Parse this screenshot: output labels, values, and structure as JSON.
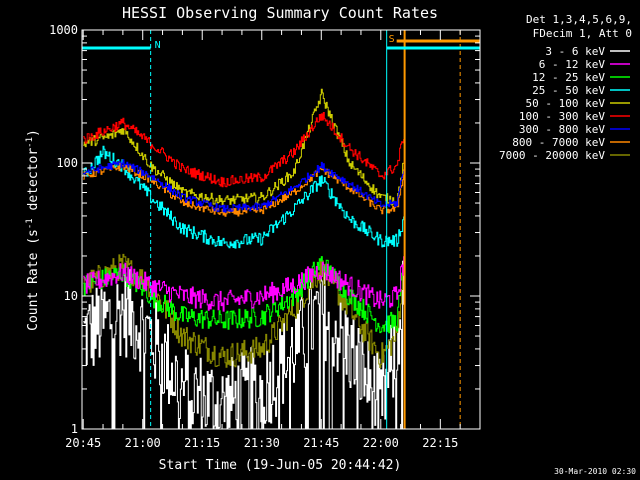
{
  "chart_data": {
    "type": "line",
    "title": "HESSI Observing Summary Count Rates",
    "xlabel": "Start Time (19-Jun-05 20:44:42)",
    "ylabel_main": "Count Rate (s",
    "ylabel_sup1": "-1",
    "ylabel_mid": " detector",
    "ylabel_sup2": "-1",
    "ylabel_end": ")",
    "yscale": "log",
    "xlim": [
      "20:44:42",
      "22:25:00"
    ],
    "ylim": [
      1,
      1000
    ],
    "x_ticks": [
      "20:45",
      "21:00",
      "21:15",
      "21:30",
      "21:45",
      "22:00",
      "22:15"
    ],
    "y_ticks": [
      "1",
      "10",
      "100",
      "1000"
    ],
    "legend_header": [
      "Det 1,3,4,5,6,9,",
      "FDecim 1, Att 0"
    ],
    "legend_position": "right",
    "footer_date": "30-Mar-2010 02:30",
    "annotations": [
      {
        "text": "N",
        "time": "21:02",
        "color": "#00ffff"
      },
      {
        "text": "S",
        "time": "22:04",
        "color": "#ff9900"
      }
    ],
    "bands": [
      {
        "label": "3 - 6 keV",
        "color": "#ffffff",
        "times": [
          "20:45",
          "20:55",
          "21:02",
          "21:10",
          "21:20",
          "21:30",
          "21:38",
          "21:45",
          "21:52",
          "22:00",
          "22:04",
          "22:06"
        ],
        "values": [
          5,
          8,
          5,
          2,
          1.5,
          2,
          4,
          8,
          4,
          1.5,
          4,
          20
        ]
      },
      {
        "label": "6 - 12 keV",
        "color": "#ff00ff",
        "times": [
          "20:45",
          "20:55",
          "21:02",
          "21:10",
          "21:20",
          "21:30",
          "21:38",
          "21:45",
          "21:52",
          "22:00",
          "22:04",
          "22:06"
        ],
        "values": [
          12,
          15,
          12,
          10,
          9,
          10,
          12,
          16,
          12,
          9,
          10,
          20
        ]
      },
      {
        "label": "12 - 25 keV",
        "color": "#00ff00",
        "times": [
          "20:45",
          "20:55",
          "21:02",
          "21:10",
          "21:20",
          "21:30",
          "21:38",
          "21:45",
          "21:52",
          "22:00",
          "22:04",
          "22:06"
        ],
        "values": [
          12,
          15,
          10,
          7,
          6.5,
          7,
          10,
          18,
          10,
          6,
          6.5,
          20
        ]
      },
      {
        "label": "25 - 50 keV",
        "color": "#00ffff",
        "times": [
          "20:45",
          "20:50",
          "20:55",
          "21:02",
          "21:10",
          "21:20",
          "21:30",
          "21:38",
          "21:45",
          "21:52",
          "22:00",
          "22:04",
          "22:06"
        ],
        "values": [
          80,
          120,
          95,
          55,
          32,
          25,
          27,
          45,
          75,
          38,
          26,
          26,
          40
        ]
      },
      {
        "label": "50 - 100 keV",
        "color": "#cccc00",
        "times": [
          "20:45",
          "20:52",
          "20:55",
          "21:02",
          "21:10",
          "21:20",
          "21:30",
          "21:38",
          "21:45",
          "21:52",
          "22:00",
          "22:04",
          "22:06"
        ],
        "values": [
          140,
          160,
          180,
          95,
          60,
          52,
          55,
          85,
          330,
          100,
          55,
          52,
          110
        ]
      },
      {
        "label": "100 - 300 keV",
        "color": "#ff0000",
        "times": [
          "20:45",
          "20:55",
          "21:02",
          "21:10",
          "21:20",
          "21:30",
          "21:38",
          "21:45",
          "21:52",
          "22:00",
          "22:04",
          "22:06"
        ],
        "values": [
          150,
          200,
          140,
          90,
          72,
          78,
          120,
          230,
          130,
          80,
          95,
          175
        ]
      },
      {
        "label": "300 - 800 keV",
        "color": "#0000ff",
        "times": [
          "20:45",
          "20:55",
          "21:02",
          "21:10",
          "21:20",
          "21:30",
          "21:38",
          "21:45",
          "21:52",
          "22:00",
          "22:04",
          "22:06"
        ],
        "values": [
          85,
          100,
          80,
          55,
          45,
          47,
          65,
          95,
          70,
          48,
          50,
          100
        ]
      },
      {
        "label": "800 - 7000 keV",
        "color": "#ff8800",
        "times": [
          "20:45",
          "20:55",
          "21:02",
          "21:10",
          "21:20",
          "21:30",
          "21:38",
          "21:45",
          "21:52",
          "22:00",
          "22:04",
          "22:06"
        ],
        "values": [
          80,
          95,
          75,
          50,
          42,
          44,
          60,
          90,
          65,
          44,
          45,
          95
        ]
      },
      {
        "label": "7000 - 20000 keV",
        "color": "#888800",
        "times": [
          "20:45",
          "20:55",
          "21:02",
          "21:10",
          "21:20",
          "21:30",
          "21:38",
          "21:45",
          "21:52",
          "22:00",
          "22:04",
          "22:06"
        ],
        "values": [
          12,
          17,
          12,
          5,
          3.5,
          4,
          8,
          16,
          8,
          3.5,
          5,
          20
        ]
      }
    ]
  }
}
